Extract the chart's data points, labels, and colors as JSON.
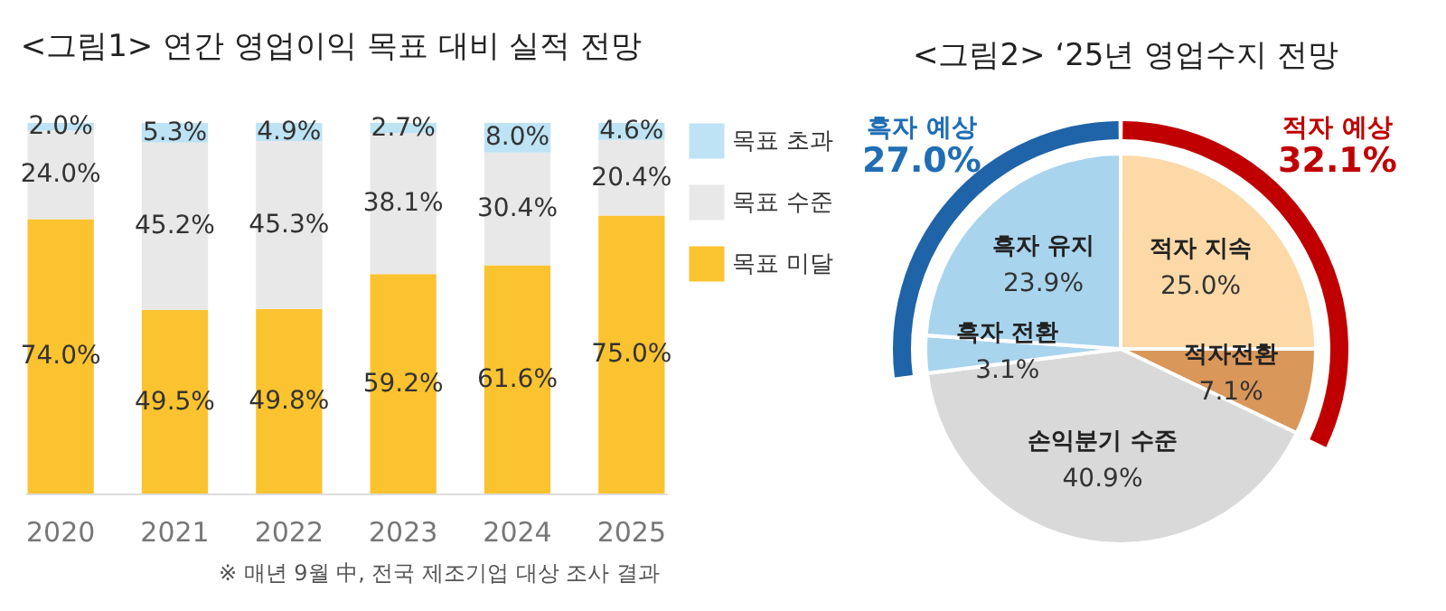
{
  "chart_data": [
    {
      "type": "bar",
      "title": "<그림1> 연간 영업이익 목표 대비 실적 전망",
      "categories": [
        "2020",
        "2021",
        "2022",
        "2023",
        "2024",
        "2025"
      ],
      "stacked": true,
      "ylim": [
        0,
        100
      ],
      "tick_labels": "x",
      "legend": "right",
      "grid": false,
      "series": [
        {
          "name": "목표 미달",
          "color": "#fbc32f",
          "values": [
            74.0,
            49.5,
            49.8,
            59.2,
            61.6,
            75.0
          ],
          "value_labels": [
            "74.0%",
            "49.5%",
            "49.8%",
            "59.2%",
            "61.6%",
            "75.0%"
          ]
        },
        {
          "name": "목표 수준",
          "color": "#e8e8e8",
          "values": [
            24.0,
            45.2,
            45.3,
            38.1,
            30.4,
            20.4
          ],
          "value_labels": [
            "24.0%",
            "45.2%",
            "45.3%",
            "38.1%",
            "30.4%",
            "20.4%"
          ]
        },
        {
          "name": "목표 초과",
          "color": "#bde3f5",
          "values": [
            2.0,
            5.3,
            4.9,
            2.7,
            8.0,
            4.6
          ],
          "value_labels": [
            "2.0%",
            "5.3%",
            "4.9%",
            "2.7%",
            "8.0%",
            "4.6%"
          ]
        }
      ],
      "annotations": [
        "※ 매년 9월 中, 전국 제조기업 대상 조사 결과"
      ]
    },
    {
      "type": "pie",
      "title": "<그림2> ‘25년 영업수지 전망",
      "categories": [
        "적자 지속",
        "적자전환",
        "손익분기 수준",
        "흑자 전환",
        "흑자 유지"
      ],
      "values": [
        25.0,
        7.1,
        40.9,
        3.1,
        23.9
      ],
      "colors": [
        "#fdd9a8",
        "#d9975a",
        "#d9d9d9",
        "#a9d4ee",
        "#a9d4ee"
      ],
      "value_labels": [
        "25.0%",
        "7.1%",
        "40.9%",
        "3.1%",
        "23.9%"
      ],
      "annotations": [
        "흑자 예상",
        "27.0%",
        "적자 예상",
        "32.1%"
      ]
    }
  ]
}
